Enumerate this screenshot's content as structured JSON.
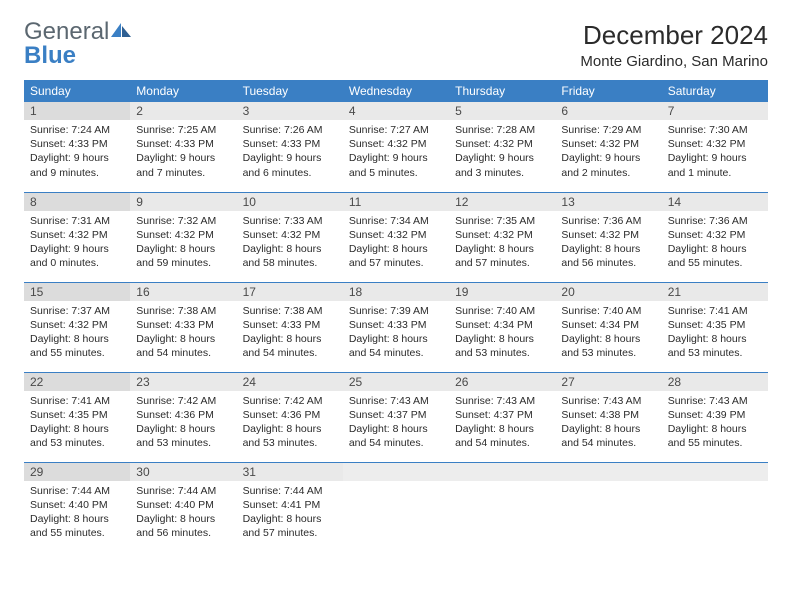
{
  "logo": {
    "general": "General",
    "blue": "Blue"
  },
  "title": "December 2024",
  "location": "Monte Giardino, San Marino",
  "colors": {
    "header_bg": "#3a7fc4",
    "header_text": "#ffffff",
    "daynum_bg": "#e9e9e9",
    "daynum_bg_shaded": "#dcdcdc",
    "row_border": "#3a7fc4",
    "logo_gray": "#5b6770",
    "logo_blue": "#3a7fc4"
  },
  "weekdays": [
    "Sunday",
    "Monday",
    "Tuesday",
    "Wednesday",
    "Thursday",
    "Friday",
    "Saturday"
  ],
  "weeks": [
    [
      {
        "n": "1",
        "sunrise": "7:24 AM",
        "sunset": "4:33 PM",
        "daylight": "9 hours and 9 minutes."
      },
      {
        "n": "2",
        "sunrise": "7:25 AM",
        "sunset": "4:33 PM",
        "daylight": "9 hours and 7 minutes."
      },
      {
        "n": "3",
        "sunrise": "7:26 AM",
        "sunset": "4:33 PM",
        "daylight": "9 hours and 6 minutes."
      },
      {
        "n": "4",
        "sunrise": "7:27 AM",
        "sunset": "4:32 PM",
        "daylight": "9 hours and 5 minutes."
      },
      {
        "n": "5",
        "sunrise": "7:28 AM",
        "sunset": "4:32 PM",
        "daylight": "9 hours and 3 minutes."
      },
      {
        "n": "6",
        "sunrise": "7:29 AM",
        "sunset": "4:32 PM",
        "daylight": "9 hours and 2 minutes."
      },
      {
        "n": "7",
        "sunrise": "7:30 AM",
        "sunset": "4:32 PM",
        "daylight": "9 hours and 1 minute."
      }
    ],
    [
      {
        "n": "8",
        "sunrise": "7:31 AM",
        "sunset": "4:32 PM",
        "daylight": "9 hours and 0 minutes."
      },
      {
        "n": "9",
        "sunrise": "7:32 AM",
        "sunset": "4:32 PM",
        "daylight": "8 hours and 59 minutes."
      },
      {
        "n": "10",
        "sunrise": "7:33 AM",
        "sunset": "4:32 PM",
        "daylight": "8 hours and 58 minutes."
      },
      {
        "n": "11",
        "sunrise": "7:34 AM",
        "sunset": "4:32 PM",
        "daylight": "8 hours and 57 minutes."
      },
      {
        "n": "12",
        "sunrise": "7:35 AM",
        "sunset": "4:32 PM",
        "daylight": "8 hours and 57 minutes."
      },
      {
        "n": "13",
        "sunrise": "7:36 AM",
        "sunset": "4:32 PM",
        "daylight": "8 hours and 56 minutes."
      },
      {
        "n": "14",
        "sunrise": "7:36 AM",
        "sunset": "4:32 PM",
        "daylight": "8 hours and 55 minutes."
      }
    ],
    [
      {
        "n": "15",
        "sunrise": "7:37 AM",
        "sunset": "4:32 PM",
        "daylight": "8 hours and 55 minutes."
      },
      {
        "n": "16",
        "sunrise": "7:38 AM",
        "sunset": "4:33 PM",
        "daylight": "8 hours and 54 minutes."
      },
      {
        "n": "17",
        "sunrise": "7:38 AM",
        "sunset": "4:33 PM",
        "daylight": "8 hours and 54 minutes."
      },
      {
        "n": "18",
        "sunrise": "7:39 AM",
        "sunset": "4:33 PM",
        "daylight": "8 hours and 54 minutes."
      },
      {
        "n": "19",
        "sunrise": "7:40 AM",
        "sunset": "4:34 PM",
        "daylight": "8 hours and 53 minutes."
      },
      {
        "n": "20",
        "sunrise": "7:40 AM",
        "sunset": "4:34 PM",
        "daylight": "8 hours and 53 minutes."
      },
      {
        "n": "21",
        "sunrise": "7:41 AM",
        "sunset": "4:35 PM",
        "daylight": "8 hours and 53 minutes."
      }
    ],
    [
      {
        "n": "22",
        "sunrise": "7:41 AM",
        "sunset": "4:35 PM",
        "daylight": "8 hours and 53 minutes."
      },
      {
        "n": "23",
        "sunrise": "7:42 AM",
        "sunset": "4:36 PM",
        "daylight": "8 hours and 53 minutes."
      },
      {
        "n": "24",
        "sunrise": "7:42 AM",
        "sunset": "4:36 PM",
        "daylight": "8 hours and 53 minutes."
      },
      {
        "n": "25",
        "sunrise": "7:43 AM",
        "sunset": "4:37 PM",
        "daylight": "8 hours and 54 minutes."
      },
      {
        "n": "26",
        "sunrise": "7:43 AM",
        "sunset": "4:37 PM",
        "daylight": "8 hours and 54 minutes."
      },
      {
        "n": "27",
        "sunrise": "7:43 AM",
        "sunset": "4:38 PM",
        "daylight": "8 hours and 54 minutes."
      },
      {
        "n": "28",
        "sunrise": "7:43 AM",
        "sunset": "4:39 PM",
        "daylight": "8 hours and 55 minutes."
      }
    ],
    [
      {
        "n": "29",
        "sunrise": "7:44 AM",
        "sunset": "4:40 PM",
        "daylight": "8 hours and 55 minutes."
      },
      {
        "n": "30",
        "sunrise": "7:44 AM",
        "sunset": "4:40 PM",
        "daylight": "8 hours and 56 minutes."
      },
      {
        "n": "31",
        "sunrise": "7:44 AM",
        "sunset": "4:41 PM",
        "daylight": "8 hours and 57 minutes."
      },
      null,
      null,
      null,
      null
    ]
  ],
  "labels": {
    "sunrise_prefix": "Sunrise: ",
    "sunset_prefix": "Sunset: ",
    "daylight_prefix": "Daylight: "
  }
}
